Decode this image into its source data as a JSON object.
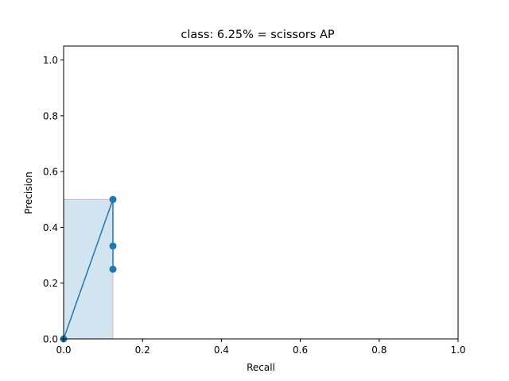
{
  "chart_data": {
    "type": "line",
    "title": "class: 6.25% = scissors AP",
    "xlabel": "Recall",
    "ylabel": "Precision",
    "xlim": [
      0.0,
      1.0
    ],
    "ylim": [
      0.0,
      1.05
    ],
    "xticks": [
      "0.0",
      "0.2",
      "0.4",
      "0.6",
      "0.8",
      "1.0"
    ],
    "yticks": [
      "0.0",
      "0.2",
      "0.4",
      "0.6",
      "0.8",
      "1.0"
    ],
    "grid": false,
    "series": [
      {
        "x": [
          0.0,
          0.125,
          0.125,
          0.125
        ],
        "y": [
          0.0,
          0.5,
          0.333,
          0.25
        ],
        "color": "#1f77b4"
      }
    ],
    "ap_area": {
      "x": [
        0.0,
        0.125
      ],
      "y": [
        0.5,
        0.5
      ],
      "fill_color": "#1f77b4",
      "edge_color": "#d62728"
    }
  }
}
